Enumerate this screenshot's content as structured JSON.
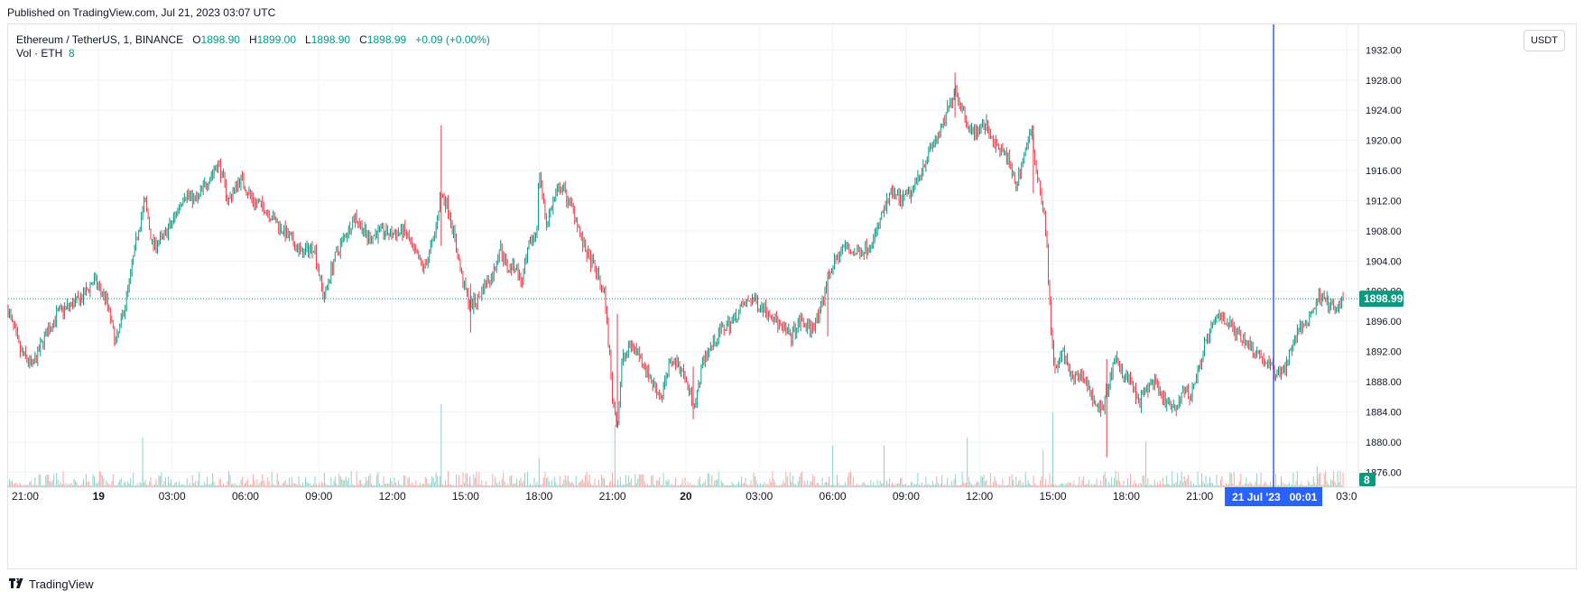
{
  "published": "Published on TradingView.com, Jul 21, 2023 03:07 UTC",
  "legend": {
    "symbol": "Ethereum / TetherUS, 1, BINANCE",
    "open_label": "O",
    "open": "1898.90",
    "high_label": "H",
    "high": "1899.00",
    "low_label": "L",
    "low": "1898.90",
    "close_label": "C",
    "close": "1898.99",
    "change": "+0.09 (+0.00%)",
    "vol_label": "Vol · ETH",
    "vol_value": "8"
  },
  "currency_button": "USDT",
  "footer": {
    "brand": "TradingView",
    "icon": "tradingview-logo-icon"
  },
  "colors": {
    "up": "#089981",
    "down": "#f23645",
    "crosshair": "#2962ff",
    "grid": "#f0f3fa"
  },
  "chart_data": {
    "type": "candlestick",
    "title": "Ethereum / TetherUS, 1, BINANCE",
    "ylim": [
      1874,
      1933
    ],
    "y_ticks": [
      "1876.00",
      "1880.00",
      "1884.00",
      "1888.00",
      "1892.00",
      "1896.00",
      "1900.00",
      "1904.00",
      "1908.00",
      "1912.00",
      "1916.00",
      "1920.00",
      "1924.00",
      "1928.00",
      "1932.00"
    ],
    "x_ticks": [
      {
        "label": "21:00",
        "h": -3,
        "bold": false
      },
      {
        "label": "19",
        "h": 0,
        "bold": true
      },
      {
        "label": "03:00",
        "h": 3,
        "bold": false
      },
      {
        "label": "06:00",
        "h": 6,
        "bold": false
      },
      {
        "label": "09:00",
        "h": 9,
        "bold": false
      },
      {
        "label": "12:00",
        "h": 12,
        "bold": false
      },
      {
        "label": "15:00",
        "h": 15,
        "bold": false
      },
      {
        "label": "18:00",
        "h": 18,
        "bold": false
      },
      {
        "label": "21:00",
        "h": 21,
        "bold": false
      },
      {
        "label": "20",
        "h": 24,
        "bold": true
      },
      {
        "label": "03:00",
        "h": 27,
        "bold": false
      },
      {
        "label": "06:00",
        "h": 30,
        "bold": false
      },
      {
        "label": "09:00",
        "h": 33,
        "bold": false
      },
      {
        "label": "12:00",
        "h": 36,
        "bold": false
      },
      {
        "label": "15:00",
        "h": 39,
        "bold": false
      },
      {
        "label": "18:00",
        "h": 42,
        "bold": false
      },
      {
        "label": "21:00",
        "h": 45,
        "bold": false
      },
      {
        "label": "03:0",
        "h": 51,
        "bold": false
      }
    ],
    "x_range_hours": [
      -3.7,
      51.3
    ],
    "price_path": [
      [
        -3.7,
        1897.5
      ],
      [
        -3.2,
        1892
      ],
      [
        -2.7,
        1890
      ],
      [
        -2.2,
        1894
      ],
      [
        -1.7,
        1897
      ],
      [
        -1.2,
        1898
      ],
      [
        -0.7,
        1899
      ],
      [
        -0.2,
        1901.5
      ],
      [
        0.3,
        1899
      ],
      [
        0.7,
        1893
      ],
      [
        1.0,
        1897
      ],
      [
        1.3,
        1902
      ],
      [
        1.6,
        1908
      ],
      [
        1.9,
        1912
      ],
      [
        2.2,
        1906
      ],
      [
        2.6,
        1907
      ],
      [
        3.0,
        1909
      ],
      [
        3.5,
        1913
      ],
      [
        4.0,
        1912
      ],
      [
        4.5,
        1915
      ],
      [
        4.9,
        1917
      ],
      [
        5.3,
        1912
      ],
      [
        5.8,
        1915
      ],
      [
        6.3,
        1912
      ],
      [
        6.8,
        1911
      ],
      [
        7.3,
        1909
      ],
      [
        7.8,
        1907
      ],
      [
        8.3,
        1905
      ],
      [
        8.8,
        1906
      ],
      [
        9.2,
        1899
      ],
      [
        9.6,
        1904
      ],
      [
        10.0,
        1907
      ],
      [
        10.5,
        1910
      ],
      [
        11.0,
        1907
      ],
      [
        11.5,
        1908
      ],
      [
        12.0,
        1907.5
      ],
      [
        12.5,
        1908
      ],
      [
        12.9,
        1905
      ],
      [
        13.3,
        1903
      ],
      [
        13.7,
        1907
      ],
      [
        14.0,
        1913
      ],
      [
        14.3,
        1911
      ],
      [
        14.6,
        1906
      ],
      [
        14.9,
        1901
      ],
      [
        15.2,
        1898
      ],
      [
        15.5,
        1899
      ],
      [
        15.8,
        1901
      ],
      [
        16.1,
        1902
      ],
      [
        16.4,
        1906
      ],
      [
        16.7,
        1903
      ],
      [
        17.0,
        1903.5
      ],
      [
        17.3,
        1901
      ],
      [
        17.6,
        1906
      ],
      [
        17.9,
        1908
      ],
      [
        18.0,
        1916
      ],
      [
        18.3,
        1909
      ],
      [
        18.6,
        1912
      ],
      [
        18.9,
        1914
      ],
      [
        19.2,
        1912
      ],
      [
        19.5,
        1910
      ],
      [
        19.8,
        1906
      ],
      [
        20.1,
        1904
      ],
      [
        20.4,
        1902
      ],
      [
        20.7,
        1899
      ],
      [
        21.0,
        1886
      ],
      [
        21.2,
        1882
      ],
      [
        21.4,
        1891
      ],
      [
        21.8,
        1893
      ],
      [
        22.2,
        1891
      ],
      [
        22.6,
        1888
      ],
      [
        23.0,
        1886
      ],
      [
        23.4,
        1891
      ],
      [
        23.8,
        1890
      ],
      [
        24.1,
        1887
      ],
      [
        24.4,
        1885
      ],
      [
        24.7,
        1891
      ],
      [
        25.1,
        1893
      ],
      [
        25.5,
        1895
      ],
      [
        25.9,
        1896
      ],
      [
        26.3,
        1898
      ],
      [
        26.7,
        1899
      ],
      [
        27.1,
        1898
      ],
      [
        27.5,
        1897
      ],
      [
        27.9,
        1895
      ],
      [
        28.3,
        1894
      ],
      [
        28.7,
        1896
      ],
      [
        29.1,
        1895
      ],
      [
        29.5,
        1897
      ],
      [
        29.8,
        1902
      ],
      [
        30.1,
        1904
      ],
      [
        30.5,
        1906
      ],
      [
        30.9,
        1905
      ],
      [
        31.3,
        1905.5
      ],
      [
        31.7,
        1907
      ],
      [
        32.0,
        1910
      ],
      [
        32.4,
        1913
      ],
      [
        32.8,
        1912
      ],
      [
        33.2,
        1913
      ],
      [
        33.6,
        1916
      ],
      [
        34.0,
        1919
      ],
      [
        34.4,
        1921
      ],
      [
        34.7,
        1924
      ],
      [
        35.0,
        1927
      ],
      [
        35.3,
        1924
      ],
      [
        35.7,
        1921
      ],
      [
        36.0,
        1921.5
      ],
      [
        36.3,
        1922
      ],
      [
        36.7,
        1919
      ],
      [
        37.1,
        1918
      ],
      [
        37.5,
        1914
      ],
      [
        37.8,
        1918
      ],
      [
        38.1,
        1921
      ],
      [
        38.4,
        1915
      ],
      [
        38.7,
        1909
      ],
      [
        38.9,
        1896
      ],
      [
        39.1,
        1889
      ],
      [
        39.4,
        1892
      ],
      [
        39.8,
        1888
      ],
      [
        40.2,
        1889
      ],
      [
        40.6,
        1886
      ],
      [
        41.0,
        1884
      ],
      [
        41.3,
        1888
      ],
      [
        41.6,
        1891
      ],
      [
        41.9,
        1889
      ],
      [
        42.2,
        1888
      ],
      [
        42.5,
        1885
      ],
      [
        42.8,
        1887
      ],
      [
        43.1,
        1888
      ],
      [
        43.4,
        1886
      ],
      [
        43.7,
        1885
      ],
      [
        44.0,
        1884
      ],
      [
        44.3,
        1887
      ],
      [
        44.6,
        1886
      ],
      [
        44.9,
        1889
      ],
      [
        45.2,
        1893
      ],
      [
        45.5,
        1895
      ],
      [
        45.8,
        1897
      ],
      [
        46.1,
        1896
      ],
      [
        46.4,
        1895
      ],
      [
        46.7,
        1894
      ],
      [
        47.0,
        1893
      ],
      [
        47.3,
        1892
      ],
      [
        47.6,
        1891
      ],
      [
        47.9,
        1890
      ],
      [
        48.2,
        1889
      ],
      [
        48.5,
        1890
      ],
      [
        48.8,
        1893
      ],
      [
        49.1,
        1895
      ],
      [
        49.4,
        1896
      ],
      [
        49.7,
        1898
      ],
      [
        50.0,
        1900
      ],
      [
        50.3,
        1898
      ],
      [
        50.6,
        1897.5
      ],
      [
        50.9,
        1899
      ]
    ],
    "spikes": [
      {
        "h": 14.0,
        "high": 1922,
        "low": 1906
      },
      {
        "h": 15.2,
        "high": 1901,
        "low": 1894.5
      },
      {
        "h": 21.2,
        "high": 1897,
        "low": 1882
      },
      {
        "h": 24.3,
        "high": 1890,
        "low": 1883
      },
      {
        "h": 41.2,
        "high": 1891,
        "low": 1878
      },
      {
        "h": 35.0,
        "high": 1929,
        "low": 1923
      },
      {
        "h": 38.2,
        "high": 1922,
        "low": 1913
      },
      {
        "h": 29.8,
        "high": 1901,
        "low": 1894
      }
    ],
    "volume_spikes": [
      {
        "h": 14.0,
        "v": 1.0
      },
      {
        "h": 21.1,
        "v": 0.75
      },
      {
        "h": 39.0,
        "v": 0.9
      },
      {
        "h": 1.8,
        "v": 0.6
      },
      {
        "h": 18.0,
        "v": 0.35
      },
      {
        "h": 30.0,
        "v": 0.5
      },
      {
        "h": 32.1,
        "v": 0.5
      },
      {
        "h": 35.5,
        "v": 0.6
      },
      {
        "h": 38.6,
        "v": 0.45
      },
      {
        "h": 42.8,
        "v": 0.55
      },
      {
        "h": 49.8,
        "v": 0.25
      }
    ],
    "last_price": "1898.99",
    "last_price_value": 1898.99,
    "last_volume": "8",
    "crosshair": {
      "time_label": "21 Jul '23   00:01",
      "h": 48.02
    }
  }
}
